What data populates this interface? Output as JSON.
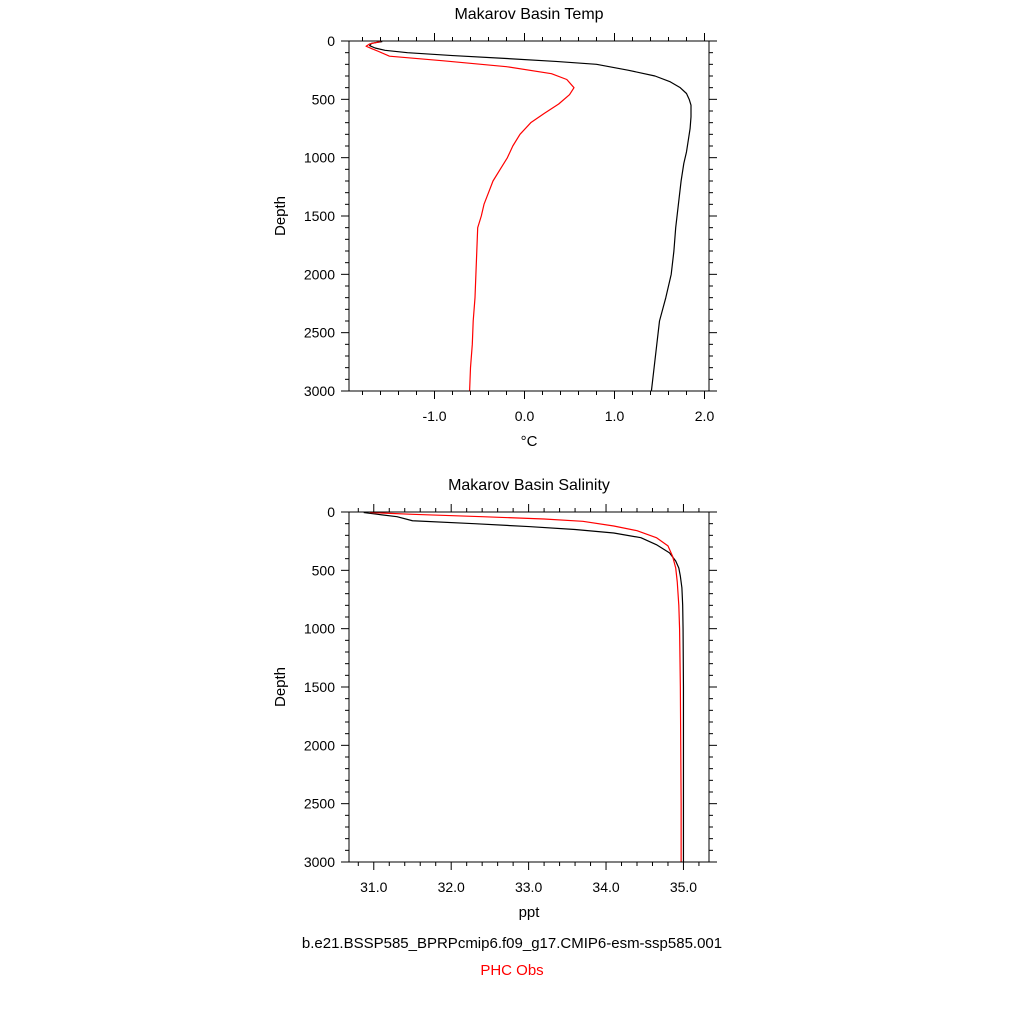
{
  "colors": {
    "model": "#000000",
    "obs": "#ff0000",
    "axis": "#000000"
  },
  "caption": {
    "model": "b.e21.BSSP585_BPRPcmip6.f09_g17.CMIP6-esm-ssp585.001",
    "obs": "PHC Obs"
  },
  "chart_data": [
    {
      "type": "line",
      "title": "Makarov Basin Temp",
      "xlabel": "°C",
      "ylabel": "Depth",
      "xlim": [
        -1.95,
        2.05
      ],
      "ylim": [
        3000,
        0
      ],
      "y_inverted": true,
      "xticks": [
        -1.0,
        0.0,
        1.0,
        2.0
      ],
      "xtick_labels": [
        "-1.0",
        "0.0",
        "1.0",
        "2.0"
      ],
      "yticks": [
        0,
        500,
        1000,
        1500,
        2000,
        2500,
        3000
      ],
      "ytick_labels": [
        "0",
        "500",
        "1000",
        "1500",
        "2000",
        "2500",
        "3000"
      ],
      "series": [
        {
          "color_key": "model",
          "points": [
            [
              -1.58,
              5
            ],
            [
              -1.7,
              20
            ],
            [
              -1.72,
              40
            ],
            [
              -1.66,
              60
            ],
            [
              -1.55,
              80
            ],
            [
              -1.3,
              100
            ],
            [
              -0.8,
              125
            ],
            [
              -0.2,
              150
            ],
            [
              0.35,
              175
            ],
            [
              0.8,
              200
            ],
            [
              1.15,
              250
            ],
            [
              1.45,
              300
            ],
            [
              1.62,
              350
            ],
            [
              1.73,
              400
            ],
            [
              1.8,
              450
            ],
            [
              1.83,
              500
            ],
            [
              1.85,
              550
            ],
            [
              1.85,
              650
            ],
            [
              1.84,
              750
            ],
            [
              1.82,
              850
            ],
            [
              1.8,
              950
            ],
            [
              1.77,
              1050
            ],
            [
              1.74,
              1200
            ],
            [
              1.71,
              1400
            ],
            [
              1.68,
              1600
            ],
            [
              1.66,
              1800
            ],
            [
              1.63,
              2000
            ],
            [
              1.57,
              2200
            ],
            [
              1.5,
              2400
            ],
            [
              1.47,
              2600
            ],
            [
              1.44,
              2800
            ],
            [
              1.41,
              3000
            ]
          ]
        },
        {
          "color_key": "obs",
          "points": [
            [
              -1.6,
              5
            ],
            [
              -1.72,
              25
            ],
            [
              -1.76,
              45
            ],
            [
              -1.7,
              65
            ],
            [
              -1.62,
              90
            ],
            [
              -1.5,
              130
            ],
            [
              -0.9,
              170
            ],
            [
              -0.2,
              220
            ],
            [
              0.3,
              280
            ],
            [
              0.47,
              330
            ],
            [
              0.55,
              400
            ],
            [
              0.5,
              460
            ],
            [
              0.38,
              540
            ],
            [
              0.22,
              620
            ],
            [
              0.07,
              700
            ],
            [
              -0.05,
              800
            ],
            [
              -0.13,
              900
            ],
            [
              -0.19,
              1000
            ],
            [
              -0.27,
              1100
            ],
            [
              -0.35,
              1200
            ],
            [
              -0.4,
              1300
            ],
            [
              -0.45,
              1400
            ],
            [
              -0.48,
              1500
            ],
            [
              -0.52,
              1600
            ],
            [
              -0.53,
              1800
            ],
            [
              -0.54,
              2000
            ],
            [
              -0.55,
              2200
            ],
            [
              -0.57,
              2400
            ],
            [
              -0.58,
              2600
            ],
            [
              -0.6,
              2800
            ],
            [
              -0.61,
              3000
            ]
          ]
        }
      ]
    },
    {
      "type": "line",
      "title": "Makarov Basin Salinity",
      "xlabel": "ppt",
      "ylabel": "Depth",
      "xlim": [
        30.68,
        35.33
      ],
      "ylim": [
        3000,
        0
      ],
      "y_inverted": true,
      "xticks": [
        31.0,
        32.0,
        33.0,
        34.0,
        35.0
      ],
      "xtick_labels": [
        "31.0",
        "32.0",
        "33.0",
        "34.0",
        "35.0"
      ],
      "yticks": [
        0,
        500,
        1000,
        1500,
        2000,
        2500,
        3000
      ],
      "ytick_labels": [
        "0",
        "500",
        "1000",
        "1500",
        "2000",
        "2500",
        "3000"
      ],
      "series": [
        {
          "color_key": "model",
          "points": [
            [
              30.87,
              5
            ],
            [
              31.05,
              20
            ],
            [
              31.3,
              40
            ],
            [
              31.5,
              75
            ],
            [
              32.3,
              100
            ],
            [
              33.0,
              125
            ],
            [
              33.6,
              150
            ],
            [
              34.1,
              180
            ],
            [
              34.45,
              220
            ],
            [
              34.65,
              280
            ],
            [
              34.82,
              350
            ],
            [
              34.9,
              420
            ],
            [
              34.94,
              480
            ],
            [
              34.96,
              550
            ],
            [
              34.98,
              650
            ],
            [
              34.99,
              800
            ],
            [
              34.995,
              1000
            ],
            [
              35.0,
              1500
            ],
            [
              35.0,
              2000
            ],
            [
              35.0,
              2500
            ],
            [
              35.0,
              3000
            ]
          ]
        },
        {
          "color_key": "obs",
          "points": [
            [
              30.95,
              5
            ],
            [
              31.5,
              20
            ],
            [
              32.4,
              40
            ],
            [
              33.2,
              60
            ],
            [
              33.7,
              80
            ],
            [
              34.1,
              120
            ],
            [
              34.4,
              160
            ],
            [
              34.65,
              220
            ],
            [
              34.8,
              290
            ],
            [
              34.86,
              380
            ],
            [
              34.9,
              480
            ],
            [
              34.92,
              600
            ],
            [
              34.94,
              800
            ],
            [
              34.95,
              1000
            ],
            [
              34.96,
              1500
            ],
            [
              34.965,
              2000
            ],
            [
              34.97,
              2500
            ],
            [
              34.97,
              3000
            ]
          ]
        }
      ]
    }
  ]
}
